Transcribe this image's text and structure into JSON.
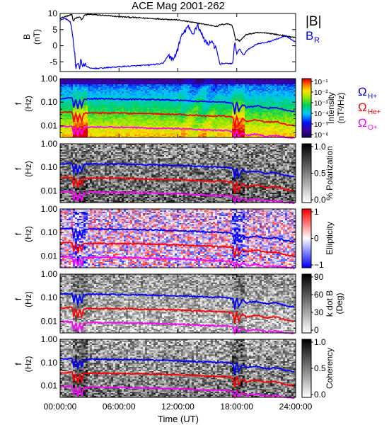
{
  "title": "ACE Mag 2001-262",
  "x_axis": {
    "label": "Time (UT)",
    "ticks": [
      "00:00:00",
      "06:00:00",
      "12:00:00",
      "18:00:00",
      "24:00:00"
    ],
    "range_hours": [
      0,
      24
    ]
  },
  "colors": {
    "B_total": "#000000",
    "B_R": "#0000ff",
    "H_plus": "#0000ff",
    "He_plus": "#ff0000",
    "O_plus": "#ff00ff"
  },
  "chart_data": [
    {
      "type": "line",
      "panel": "field",
      "ylabel": "B (nT)",
      "ylim": [
        -8,
        10
      ],
      "yticks": [
        "10",
        "5",
        "0",
        "-5"
      ],
      "legend": [
        {
          "symbol": "|B|",
          "text": "|B|",
          "color": "#000000"
        },
        {
          "symbol": "B",
          "subscript": "R",
          "text": "BR",
          "color": "#0000ff"
        }
      ],
      "series": [
        {
          "name": "|B|",
          "x": [
            0,
            0.5,
            1.0,
            1.2,
            1.35,
            1.5,
            2.0,
            2.2,
            2.5,
            3.0,
            4.0,
            6.0,
            9.0,
            12.0,
            13.0,
            14.0,
            15.0,
            16.0,
            16.3,
            17.0,
            17.5,
            17.7,
            17.9,
            18.0,
            18.3,
            19.0,
            20.0,
            21.0,
            22.0,
            23.0,
            24.0
          ],
          "values": [
            8.5,
            9.0,
            9.5,
            9.5,
            7.5,
            8.5,
            9.0,
            8.0,
            9.5,
            9.7,
            9.5,
            9.0,
            8.5,
            8.0,
            7.5,
            7.0,
            6.5,
            6.0,
            6.5,
            6.8,
            6.5,
            4.5,
            1.5,
            2.0,
            1.5,
            3.5,
            4.0,
            4.0,
            3.5,
            3.0,
            2.5
          ]
        },
        {
          "name": "BR",
          "x": [
            0,
            0.5,
            1.0,
            1.2,
            1.35,
            1.5,
            1.6,
            1.8,
            2.0,
            2.1,
            2.3,
            2.5,
            2.8,
            3.0,
            4.0,
            6.0,
            9.0,
            10.5,
            11.0,
            11.5,
            12.0,
            12.3,
            12.6,
            13.0,
            13.5,
            14.0,
            14.5,
            15.0,
            15.5,
            16.0,
            16.3,
            16.5,
            17.0,
            17.6,
            17.8,
            18.0,
            18.3,
            18.7,
            19.0,
            20.0,
            21.0,
            22.0,
            23.0,
            24.0
          ],
          "values": [
            8.0,
            8.5,
            7.5,
            5.5,
            1.0,
            -3.0,
            -7.5,
            -5.0,
            -7.0,
            -4.0,
            -6.5,
            -6.0,
            -6.5,
            -7.0,
            -7.0,
            -6.5,
            -6.0,
            -5.5,
            -3.0,
            -4.5,
            -1.0,
            2.5,
            4.0,
            6.0,
            3.5,
            6.5,
            3.0,
            0.5,
            1.5,
            -2.0,
            -6.0,
            -5.5,
            -5.5,
            -5.5,
            1.5,
            -2.5,
            -1.0,
            -3.0,
            -1.5,
            0.5,
            1.0,
            2.0,
            3.0,
            1.0
          ]
        }
      ]
    },
    {
      "type": "heatmap",
      "panel": "intensity",
      "ylabel": "f (Hz)",
      "colorbar_label": "Intensity (nT²/Hz)",
      "colorbar_ticks": [
        "10⁻¹",
        "10⁻²",
        "10⁻³",
        "10⁻⁴",
        "10⁻⁵",
        "10⁻⁶"
      ],
      "legend": [
        {
          "symbol": "Ω",
          "subscript": "H+",
          "color": "#0000ff"
        },
        {
          "symbol": "Ω",
          "subscript": "He+",
          "color": "#ff0000"
        },
        {
          "symbol": "Ω",
          "subscript": "O+",
          "color": "#ff00ff"
        }
      ]
    },
    {
      "type": "heatmap",
      "panel": "polarization",
      "ylabel": "f (Hz)",
      "colorbar_label": "% Polarization",
      "colorbar_ticks": [
        "1.0",
        "0.5",
        "0.0"
      ]
    },
    {
      "type": "heatmap",
      "panel": "ellipticity",
      "ylabel": "f (Hz)",
      "colorbar_label": "Ellipticity",
      "colorbar_ticks": [
        "1",
        "0",
        "−1"
      ]
    },
    {
      "type": "heatmap",
      "panel": "kdotb",
      "ylabel": "f (Hz)",
      "colorbar_label": "k dot B (Deg)",
      "colorbar_ticks": [
        "90",
        "60",
        "30",
        "0"
      ]
    },
    {
      "type": "heatmap",
      "panel": "coherency",
      "ylabel": "f (Hz)",
      "colorbar_label": "Coherency",
      "colorbar_ticks": [
        "1.0",
        "0.5",
        "0.0"
      ]
    }
  ],
  "spectral_axis": {
    "yticks": [
      "1.00",
      "0.10",
      "0.01"
    ],
    "log_range": [
      -2.5,
      0.0
    ],
    "gyro_freq_lines": {
      "H_plus": {
        "x": [
          0,
          1.2,
          1.4,
          1.6,
          1.8,
          2.0,
          2.2,
          2.4,
          3.0,
          6.0,
          9.0,
          12.0,
          15.0,
          17.0,
          17.6,
          17.8,
          18.0,
          18.2,
          18.6,
          19.0,
          20.0,
          21.0,
          22.0,
          23.0,
          24.0
        ],
        "values": [
          0.14,
          0.15,
          0.06,
          0.13,
          0.05,
          0.12,
          0.06,
          0.13,
          0.14,
          0.135,
          0.13,
          0.12,
          0.105,
          0.1,
          0.09,
          0.03,
          0.1,
          0.04,
          0.08,
          0.06,
          0.07,
          0.055,
          0.06,
          0.045,
          0.04
        ]
      },
      "He_plus": {
        "x": [
          0,
          1.2,
          1.4,
          1.6,
          1.8,
          2.0,
          2.2,
          2.4,
          3.0,
          6.0,
          9.0,
          12.0,
          15.0,
          17.0,
          17.6,
          17.8,
          18.0,
          18.2,
          18.6,
          19.0,
          20.0,
          21.0,
          22.0,
          23.0,
          24.0
        ],
        "values": [
          0.035,
          0.038,
          0.015,
          0.033,
          0.013,
          0.03,
          0.015,
          0.033,
          0.035,
          0.034,
          0.032,
          0.03,
          0.026,
          0.025,
          0.022,
          0.008,
          0.025,
          0.01,
          0.02,
          0.015,
          0.018,
          0.014,
          0.015,
          0.011,
          0.01
        ]
      },
      "O_plus": {
        "x": [
          0,
          1.2,
          1.4,
          1.6,
          1.8,
          2.0,
          2.2,
          2.4,
          3.0,
          6.0,
          9.0,
          12.0,
          15.0,
          17.0,
          17.6,
          17.8,
          18.0,
          18.2,
          18.6,
          19.0,
          20.0,
          21.0,
          22.0,
          23.0,
          24.0
        ],
        "values": [
          0.009,
          0.0095,
          0.004,
          0.008,
          0.0035,
          0.0075,
          0.004,
          0.008,
          0.0088,
          0.0085,
          0.008,
          0.0075,
          0.0065,
          0.0062,
          0.0055,
          0.0032,
          0.006,
          0.0034,
          0.005,
          0.0038,
          0.0045,
          0.0035,
          0.0038,
          0.0032,
          0.003
        ]
      }
    }
  }
}
